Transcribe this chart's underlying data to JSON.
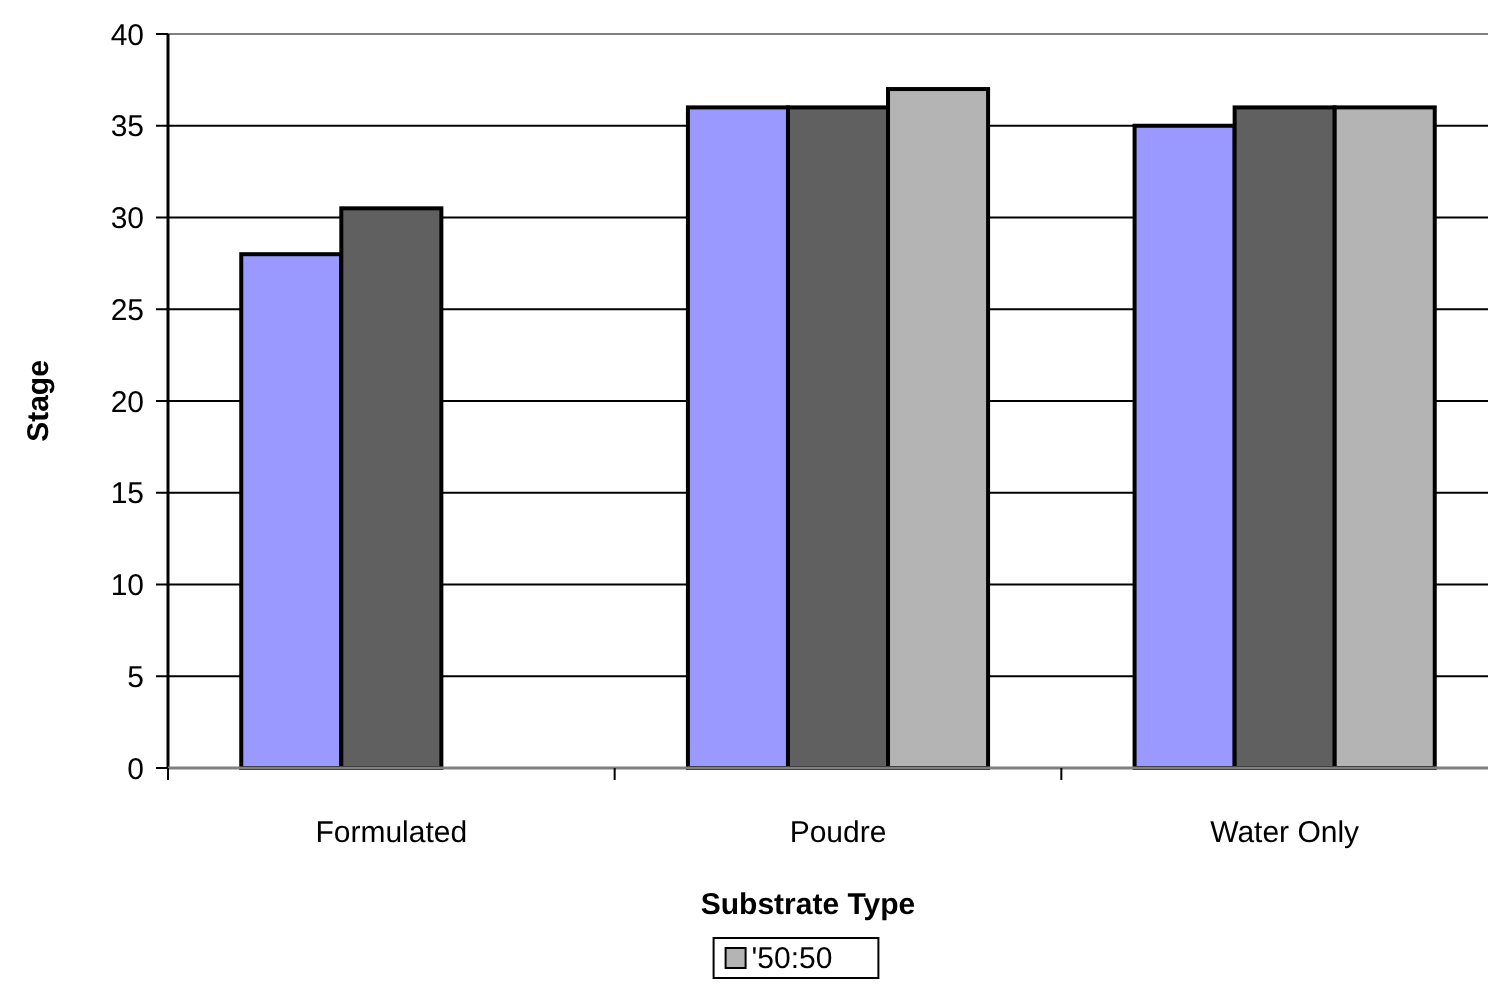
{
  "chart_data": {
    "type": "bar",
    "xlabel": "Substrate Type",
    "ylabel": "Stage",
    "categories": [
      "Formulated",
      "Poudre",
      "Water Only"
    ],
    "series": [
      {
        "color": "#9999ff",
        "values": [
          28,
          36,
          35
        ]
      },
      {
        "color": "#606060",
        "values": [
          30.5,
          36,
          36
        ]
      },
      {
        "name": "'50:50",
        "color": "#b4b4b4",
        "values": [
          null,
          37,
          36
        ]
      }
    ],
    "ylim": [
      0,
      40
    ],
    "yticks": [
      0,
      5,
      10,
      15,
      20,
      25,
      30,
      35,
      40
    ],
    "grid": "y",
    "legend": "bottom"
  }
}
